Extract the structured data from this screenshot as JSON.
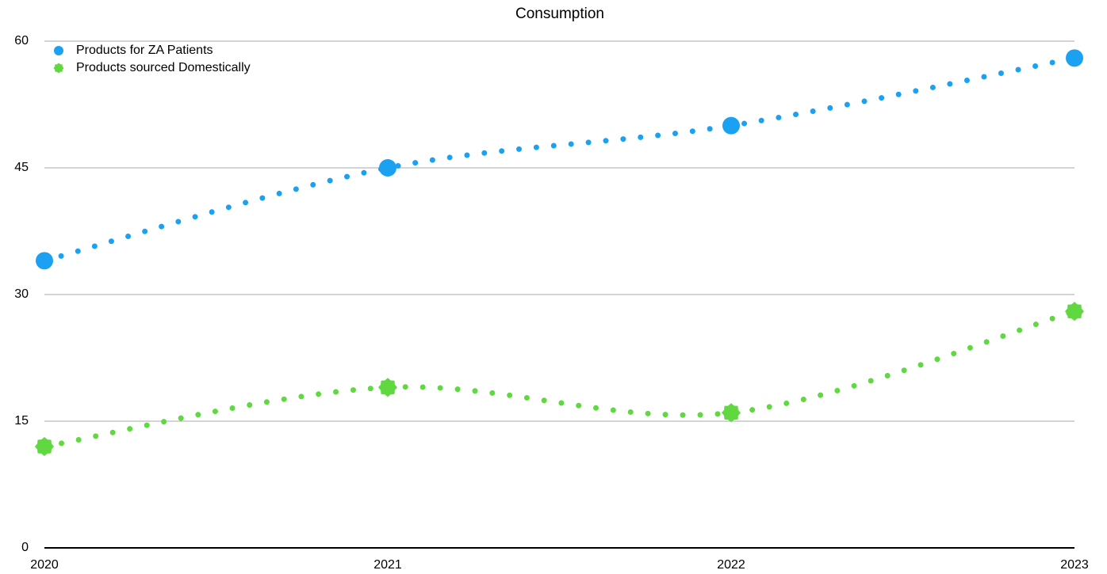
{
  "chart_data": {
    "type": "line",
    "title": "Consumption",
    "categories": [
      "2020",
      "2021",
      "2022",
      "2023"
    ],
    "series": [
      {
        "name": "Products for ZA Patients",
        "color": "#1ba1f2",
        "values": [
          34,
          45,
          50,
          58
        ]
      },
      {
        "name": "Products sourced Domestically",
        "color": "#5fd93f",
        "values": [
          12,
          19,
          16,
          28
        ]
      }
    ],
    "ylim": [
      0,
      60
    ],
    "yticks": [
      0,
      15,
      30,
      45,
      60
    ],
    "grid": true,
    "legend": "top-left"
  }
}
